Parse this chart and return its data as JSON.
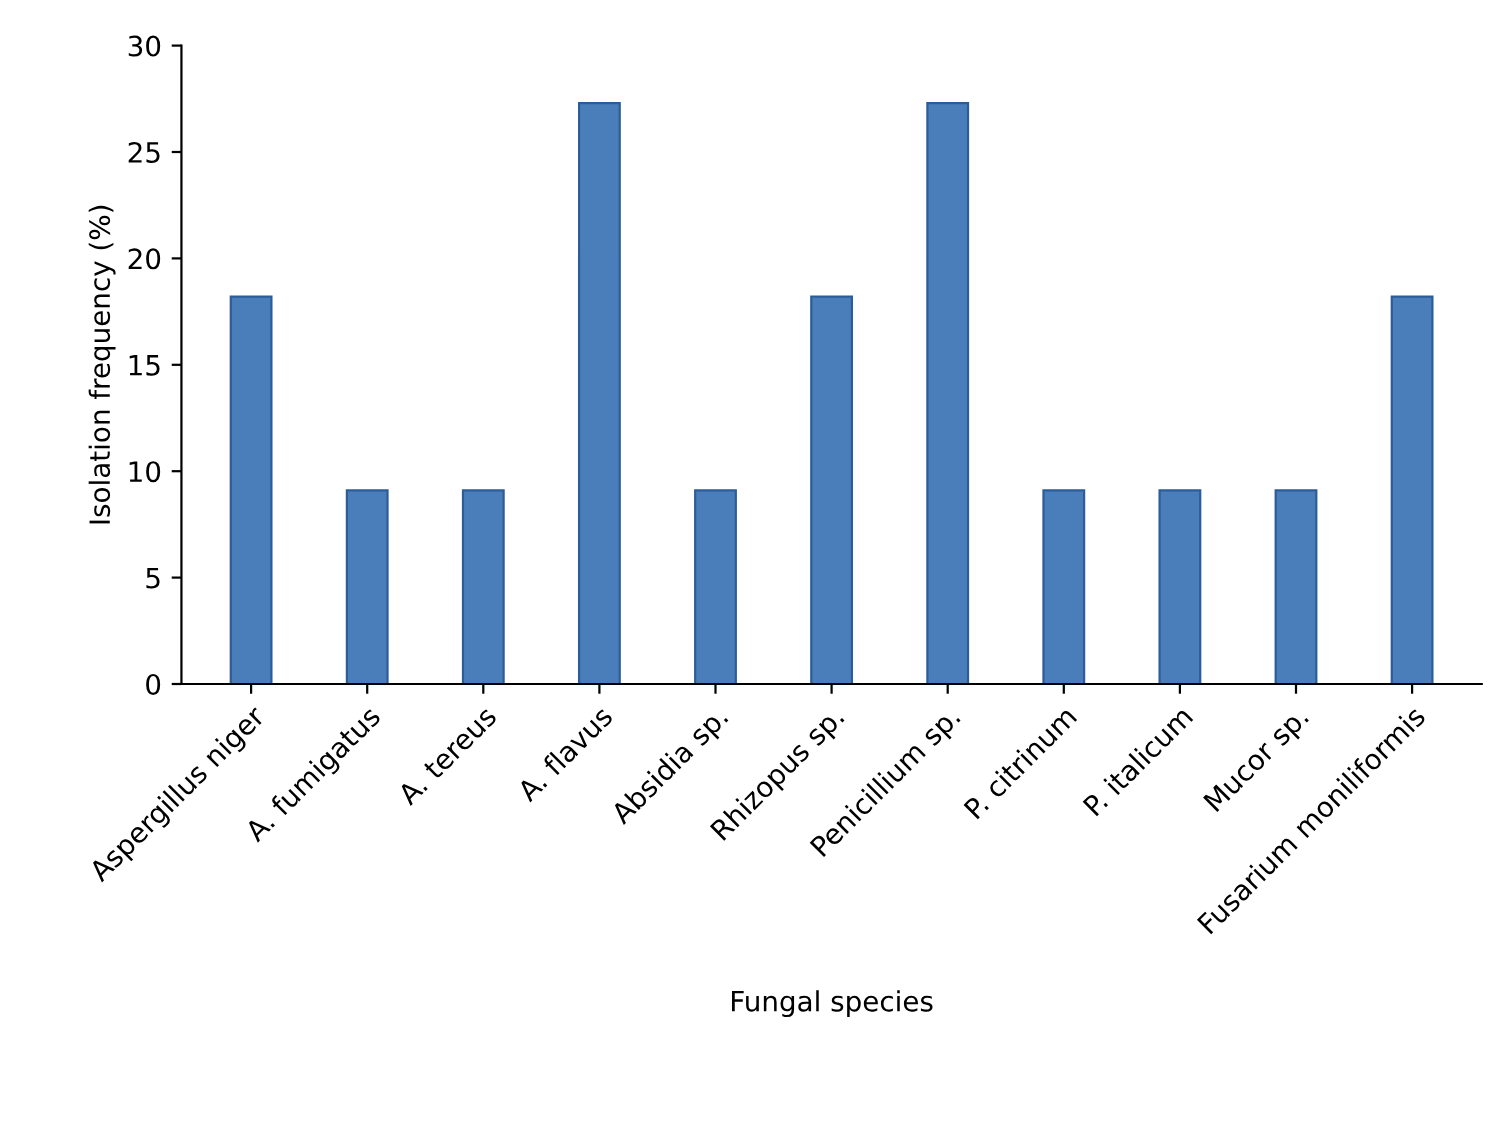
{
  "chart_data": {
    "type": "bar",
    "xlabel": "Fungal species",
    "ylabel": "Isolation frequency (%)",
    "categories": [
      "Aspergillus niger",
      "A. fumigatus",
      "A. tereus",
      "A. flavus",
      "Absidia sp.",
      "Rhizopus sp.",
      "Penicillium sp.",
      "P. citrinum",
      "P. italicum",
      "Mucor sp.",
      "Fusarium moniliformis"
    ],
    "values": [
      18.2,
      9.1,
      9.1,
      27.3,
      9.1,
      18.2,
      27.3,
      9.1,
      9.1,
      9.1,
      18.2
    ],
    "color": "#4a7ebb",
    "ylim": [
      0,
      30
    ],
    "yticks": [
      0,
      5,
      10,
      15,
      20,
      25,
      30
    ],
    "grid": false
  }
}
